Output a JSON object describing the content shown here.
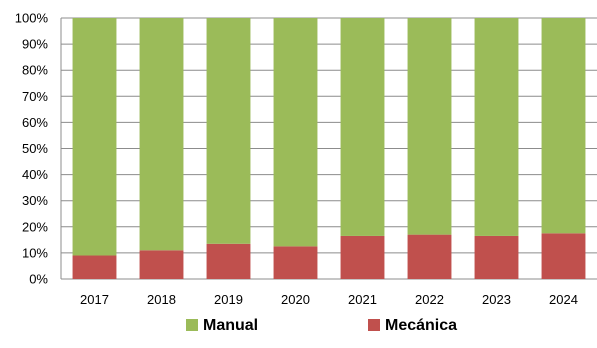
{
  "chart_data": {
    "type": "bar",
    "stacked": true,
    "percent": true,
    "categories": [
      "2017",
      "2018",
      "2019",
      "2020",
      "2021",
      "2022",
      "2023",
      "2024"
    ],
    "series": [
      {
        "name": "Mecánica",
        "color": "#c0504d",
        "values": [
          9,
          11,
          13.5,
          12.5,
          16.5,
          17,
          16.5,
          17.5
        ]
      },
      {
        "name": "Manual",
        "color": "#9bbb59",
        "values": [
          91,
          89,
          86.5,
          87.5,
          83.5,
          83,
          83.5,
          82.5
        ]
      }
    ],
    "ylim": [
      0,
      100
    ],
    "yticks": [
      "0%",
      "10%",
      "20%",
      "30%",
      "40%",
      "50%",
      "60%",
      "70%",
      "80%",
      "90%",
      "100%"
    ],
    "grid": true,
    "legend": {
      "position": "bottom",
      "order": [
        "Manual",
        "Mecánica"
      ]
    }
  }
}
